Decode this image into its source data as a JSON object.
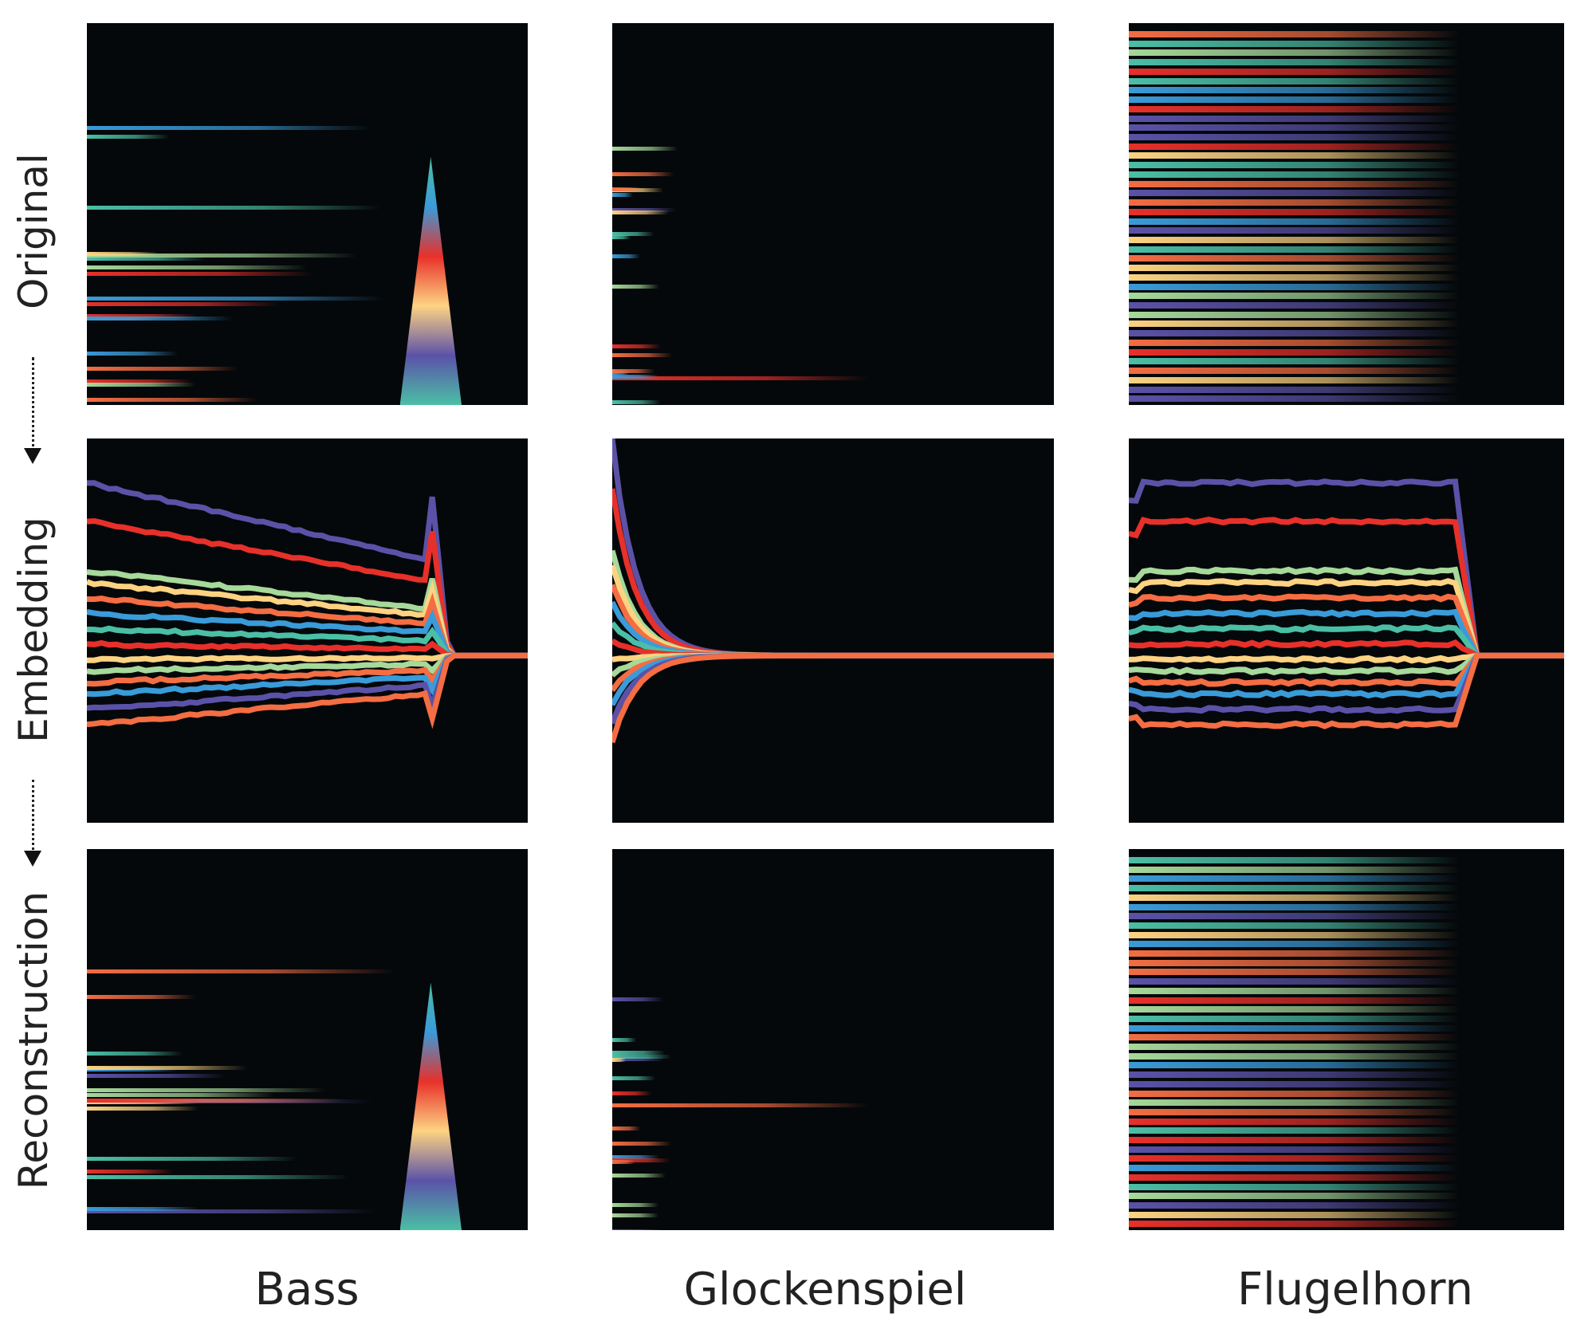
{
  "rows": [
    {
      "label": "Original"
    },
    {
      "label": "Embedding"
    },
    {
      "label": "Reconstruction"
    }
  ],
  "columns": [
    {
      "label": "Bass"
    },
    {
      "label": "Glockenspiel"
    },
    {
      "label": "Flugelhorn"
    }
  ],
  "colors": {
    "background": "#05080a",
    "purple": "#5b52a8",
    "red": "#e8302a",
    "orange": "#f46d43",
    "yellow": "#fdd382",
    "green": "#a6d99a",
    "blue": "#3a9bd9",
    "teal": "#4bbfa6"
  }
}
